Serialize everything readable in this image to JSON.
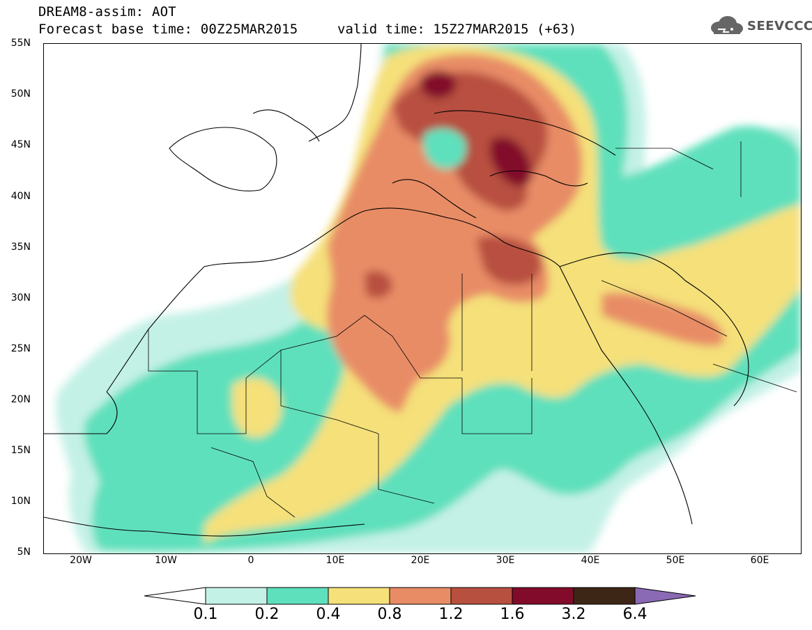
{
  "header": {
    "title": "DREAM8-assim: AOT",
    "base_time": "Forecast base time: 00Z25MAR2015",
    "valid_time": "valid time: 15Z27MAR2015 (+63)"
  },
  "logo": {
    "text": "SEEVCCC",
    "icon": "cloud-logo-icon"
  },
  "map": {
    "lat_labels": [
      "55N",
      "50N",
      "45N",
      "40N",
      "35N",
      "30N",
      "25N",
      "20N",
      "15N",
      "10N",
      "5N"
    ],
    "lon_labels": [
      "20W",
      "10W",
      "0",
      "10E",
      "20E",
      "30E",
      "40E",
      "50E",
      "60E"
    ]
  },
  "colorbar": {
    "labels": [
      "0.1",
      "0.2",
      "0.4",
      "0.8",
      "1.2",
      "1.6",
      "3.2",
      "6.4"
    ],
    "colors": [
      "#ffffff",
      "#c4f1e6",
      "#5ee0bc",
      "#f5e07a",
      "#e88c66",
      "#b8503f",
      "#820a2a",
      "#3d2616",
      "#8a69b5"
    ]
  }
}
